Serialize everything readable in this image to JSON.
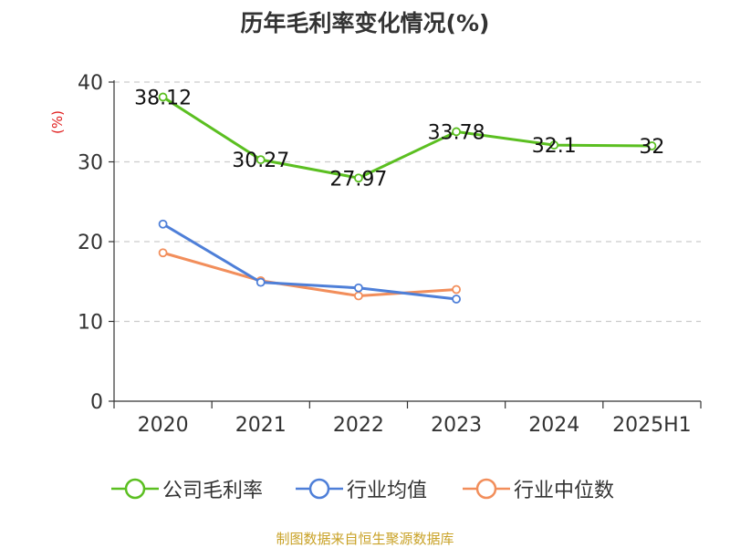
{
  "chart_data": {
    "type": "line",
    "title": "历年毛利率变化情况(%)",
    "y_unit": "(%)",
    "categories": [
      "2020",
      "2021",
      "2022",
      "2023",
      "2024",
      "2025H1"
    ],
    "ylim": [
      0,
      40
    ],
    "yticks": [
      "0",
      "10",
      "20",
      "30",
      "40"
    ],
    "grid": true,
    "legend_position": "bottom",
    "series": [
      {
        "name": "公司毛利率",
        "color": "#5bbf21",
        "values": [
          38.12,
          30.27,
          27.97,
          33.78,
          32.1,
          32
        ],
        "labels": [
          "38.12",
          "30.27",
          "27.97",
          "33.78",
          "32.1",
          "32"
        ]
      },
      {
        "name": "行业均值",
        "color": "#4e7fd8",
        "values": [
          22.2,
          14.9,
          14.2,
          12.8,
          null,
          null
        ]
      },
      {
        "name": "行业中位数",
        "color": "#f28e5b",
        "values": [
          18.6,
          15.1,
          13.2,
          14.0,
          null,
          null
        ]
      }
    ]
  },
  "source": "制图数据来自恒生聚源数据库"
}
